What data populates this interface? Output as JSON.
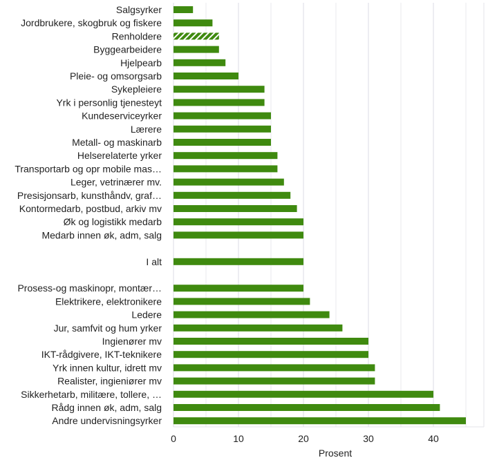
{
  "chart_data": {
    "type": "bar",
    "orientation": "horizontal",
    "xlabel": "Prosent",
    "ylabel": "",
    "xlim": [
      0,
      47
    ],
    "xticks": [
      0,
      10,
      20,
      30,
      40
    ],
    "grid": true,
    "legend": "none",
    "colors": {
      "bar": "#3f8a0f",
      "grid": "#e3e3ea",
      "hatch": "#ffffff"
    },
    "categories": [
      "Salgsyrker",
      "Jordbrukere, skogbruk og fiskere",
      "Renholdere",
      "Byggearbeidere",
      "Hjelpearb",
      "Pleie- og omsorgsarb",
      "Sykepleiere",
      "Yrk i personlig tjenesteyt",
      "Kundeserviceyrker",
      "Lærere",
      "Metall- og maskinarb",
      "Helserelaterte yrker",
      "Transportarb og opr mobile mas…",
      "Leger, vetrinærer mv.",
      "Presisjonsarb, kunsthåndv, graf…",
      "Kontormedarb, postbud, arkiv mv",
      "Øk og logistikk medarb",
      "Medarb innen øk, adm, salg",
      "",
      "I alt",
      "",
      "Prosess-og maskinopr, montær…",
      "Elektrikere, elektronikere",
      "Ledere",
      "Jur, samfvit og hum yrker",
      "Ingienører mv",
      "IKT-rådgivere, IKT-teknikere",
      "Yrk innen kultur, idrett mv",
      "Realister, ingieniører mv",
      "Sikkerhetarb, militære, tollere, …",
      "Rådg innen øk, adm, salg",
      "Andre undervisningsyrker"
    ],
    "values": [
      3,
      6,
      7,
      7,
      8,
      10,
      14,
      14,
      15,
      15,
      15,
      16,
      16,
      17,
      18,
      19,
      20,
      20,
      null,
      20,
      null,
      20,
      21,
      24,
      26,
      30,
      30,
      31,
      31,
      40,
      41,
      45
    ],
    "hatched": [
      "Renholdere"
    ]
  }
}
